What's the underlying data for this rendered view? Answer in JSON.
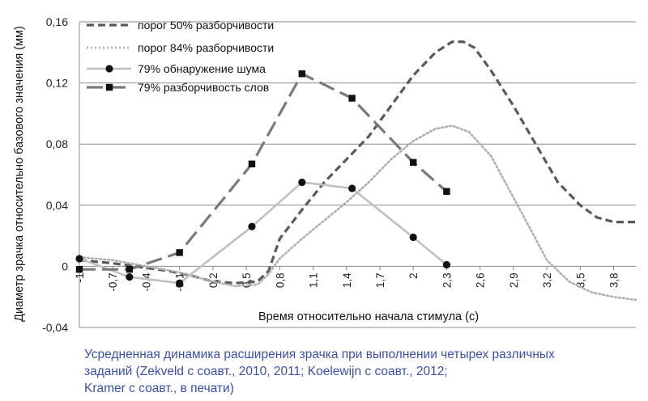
{
  "chart_data": {
    "type": "line",
    "ylabel": "Диаметр зрачка относительно базового значения (мм)",
    "xlabel": "Время относительно начала стимула (с)",
    "ylim": [
      -0.04,
      0.16
    ],
    "xlim": [
      -1.0,
      4.0
    ],
    "y_ticks": [
      {
        "value": -0.04,
        "label": "-0,04"
      },
      {
        "value": 0,
        "label": "0"
      },
      {
        "value": 0.04,
        "label": "0,04"
      },
      {
        "value": 0.08,
        "label": "0,08"
      },
      {
        "value": 0.12,
        "label": "0,12"
      },
      {
        "value": 0.16,
        "label": "0,16"
      }
    ],
    "x_ticks": [
      {
        "value": -1.0,
        "label": "-1"
      },
      {
        "value": -0.7,
        "label": "-0,7"
      },
      {
        "value": -0.4,
        "label": "-0,4"
      },
      {
        "value": -0.1,
        "label": "-0,1"
      },
      {
        "value": 0.2,
        "label": "0,2"
      },
      {
        "value": 0.5,
        "label": "0,5"
      },
      {
        "value": 0.8,
        "label": "0,8"
      },
      {
        "value": 1.1,
        "label": "1,1"
      },
      {
        "value": 1.4,
        "label": "1,4"
      },
      {
        "value": 1.7,
        "label": "1,7"
      },
      {
        "value": 2.0,
        "label": "2"
      },
      {
        "value": 2.3,
        "label": "2,3"
      },
      {
        "value": 2.6,
        "label": "2,6"
      },
      {
        "value": 2.9,
        "label": "2,9"
      },
      {
        "value": 3.2,
        "label": "3,2"
      },
      {
        "value": 3.5,
        "label": "3,5"
      },
      {
        "value": 3.8,
        "label": "3,8"
      }
    ],
    "grid": "horizontal",
    "legend_position": "top-left",
    "series": [
      {
        "name": "порог 50% разборчивости",
        "color": "#5a5a5a",
        "style": "dashed",
        "marker": "none",
        "x": [
          -1.0,
          -0.7,
          -0.4,
          -0.2,
          0.0,
          0.2,
          0.4,
          0.6,
          0.7,
          0.8,
          1.0,
          1.2,
          1.4,
          1.6,
          1.8,
          2.0,
          2.2,
          2.35,
          2.45,
          2.55,
          2.7,
          2.9,
          3.1,
          3.3,
          3.5,
          3.65,
          3.8,
          4.0
        ],
        "values": [
          0.004,
          0.002,
          -0.001,
          -0.003,
          -0.006,
          -0.01,
          -0.011,
          -0.01,
          -0.003,
          0.018,
          0.037,
          0.055,
          0.07,
          0.085,
          0.105,
          0.125,
          0.14,
          0.147,
          0.147,
          0.143,
          0.128,
          0.105,
          0.08,
          0.055,
          0.04,
          0.032,
          0.029,
          0.029
        ]
      },
      {
        "name": "порог 84% разборчивости",
        "color": "#b0b0b0",
        "style": "dotted",
        "marker": "none",
        "x": [
          -1.0,
          -0.7,
          -0.4,
          -0.1,
          0.2,
          0.4,
          0.6,
          0.7,
          0.8,
          1.0,
          1.2,
          1.4,
          1.6,
          1.8,
          2.0,
          2.2,
          2.35,
          2.5,
          2.7,
          2.9,
          3.1,
          3.2,
          3.4,
          3.6,
          3.8,
          4.0
        ],
        "values": [
          0.006,
          0.004,
          0.0,
          -0.004,
          -0.01,
          -0.013,
          -0.012,
          -0.005,
          0.005,
          0.018,
          0.03,
          0.042,
          0.055,
          0.07,
          0.082,
          0.09,
          0.092,
          0.088,
          0.072,
          0.045,
          0.018,
          0.004,
          -0.01,
          -0.017,
          -0.02,
          -0.022
        ]
      },
      {
        "name": "79% обнаружение шума",
        "color": "#c0c0c0",
        "style": "solid",
        "marker": "diamond",
        "x": [
          -1.0,
          -0.55,
          -0.1,
          0.55,
          1.0,
          1.45,
          2.0,
          2.3
        ],
        "values": [
          0.005,
          -0.007,
          -0.011,
          0.026,
          0.055,
          0.051,
          0.019,
          0.001
        ]
      },
      {
        "name": "79% разборчивость слов",
        "color": "#7a7a7a",
        "style": "longdash",
        "marker": "square",
        "x": [
          -1.0,
          -0.55,
          -0.1,
          0.55,
          1.0,
          1.45,
          2.0,
          2.3
        ],
        "values": [
          -0.002,
          -0.002,
          0.009,
          0.067,
          0.126,
          0.11,
          0.068,
          0.049
        ]
      }
    ]
  },
  "caption": {
    "line1": "Усредненная динамика расширения зрачка при выполнении четырех различных",
    "line2": "заданий (Zekveld с соавт., 2010, 2011; Koelewijn с соавт., 2012;",
    "line3": "Kramer с соавт., в печати)"
  }
}
